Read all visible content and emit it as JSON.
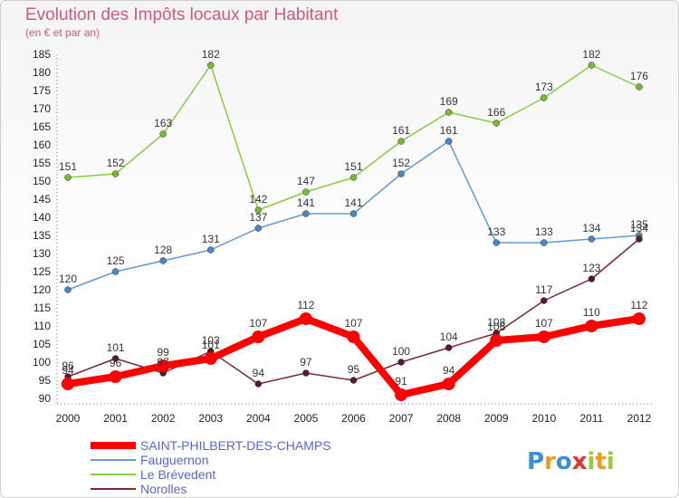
{
  "chart_data": {
    "type": "line",
    "title": "Evolution des Impôts locaux par Habitant",
    "subtitle": "(en € et par an)",
    "categories": [
      "2000",
      "2001",
      "2002",
      "2003",
      "2004",
      "2005",
      "2006",
      "2007",
      "2008",
      "2009",
      "2010",
      "2011",
      "2012"
    ],
    "ylim": [
      90,
      185
    ],
    "yticks": [
      90,
      95,
      100,
      105,
      110,
      115,
      120,
      125,
      130,
      135,
      140,
      145,
      150,
      155,
      160,
      165,
      170,
      175,
      180,
      185
    ],
    "grid": false,
    "legend_position": "bottom-left",
    "series": [
      {
        "name": "Le Brévedent",
        "color": "#88cc44",
        "dot": "#77bb33",
        "values": [
          151,
          152,
          163,
          182,
          142,
          147,
          151,
          161,
          169,
          166,
          173,
          182,
          176
        ]
      },
      {
        "name": "Fauguernon",
        "color": "#6699cc",
        "dot": "#4a86c5",
        "values": [
          120,
          125,
          128,
          131,
          137,
          141,
          141,
          152,
          161,
          133,
          133,
          134,
          135
        ]
      },
      {
        "name": "Norolles",
        "color": "#7a2a35",
        "dot": "#5a1a22",
        "values": [
          96,
          101,
          97,
          103,
          94,
          97,
          95,
          100,
          104,
          108,
          117,
          123,
          134
        ]
      },
      {
        "name": "SAINT-PHILBERT-DES-CHAMPS",
        "color": "#ff0000",
        "dot": "#ff0000",
        "values": [
          94,
          96,
          99,
          101,
          107,
          112,
          107,
          91,
          94,
          106,
          107,
          110,
          112
        ]
      }
    ],
    "legend_order": [
      "SAINT-PHILBERT-DES-CHAMPS",
      "Fauguernon",
      "Le Brévedent",
      "Norolles"
    ]
  },
  "brand": {
    "letters": [
      "P",
      "r",
      "o",
      "x",
      "i",
      "t",
      "i"
    ],
    "colors": [
      "#3a8fd6",
      "#f39a1d",
      "#3a8fd6",
      "#e8342a",
      "#9bc93b",
      "#f39a1d",
      "#9bc93b"
    ]
  }
}
